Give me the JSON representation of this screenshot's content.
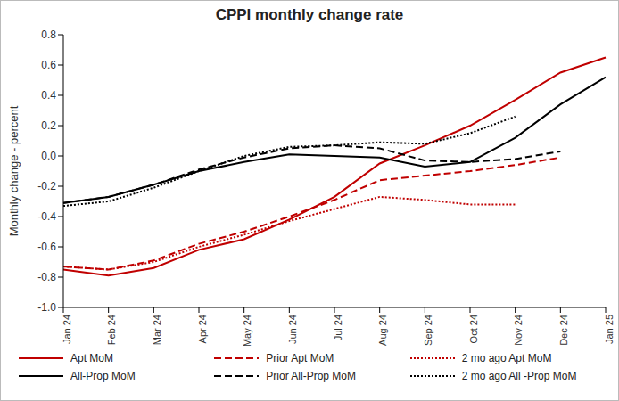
{
  "chart_data": {
    "type": "line",
    "title": "CPPI monthly change rate",
    "y_label": "Monthly change - percent",
    "categories": [
      "Jan 24",
      "Feb 24",
      "Mar 24",
      "Apr 24",
      "May 24",
      "Jun 24",
      "Jul 24",
      "Aug 24",
      "Sep 24",
      "Oct 24",
      "Nov 24",
      "Dec 24",
      "Jan 25"
    ],
    "ylim": [
      -1.0,
      0.8
    ],
    "yticks": [
      {
        "value": -1.0,
        "label": "-1.0"
      },
      -0.8,
      -0.6,
      -0.4,
      -0.2,
      {
        "value": 0,
        "label": "0.0"
      },
      0.2,
      0.4,
      0.6,
      0.8
    ],
    "grid": false,
    "legend": "bottom",
    "series": [
      {
        "name": "Apt MoM",
        "color": "#c00000",
        "line_style": "solid",
        "values": [
          -0.75,
          -0.79,
          -0.74,
          -0.62,
          -0.55,
          -0.42,
          -0.27,
          -0.05,
          0.07,
          0.2,
          0.37,
          0.55,
          0.65
        ]
      },
      {
        "name": "Prior Apt MoM",
        "color": "#c00000",
        "line_style": "dashed",
        "values": [
          -0.73,
          -0.75,
          -0.69,
          -0.58,
          -0.5,
          -0.4,
          -0.29,
          -0.16,
          -0.13,
          -0.1,
          -0.06,
          -0.01,
          null
        ]
      },
      {
        "name": "2 mo ago Apt MoM",
        "color": "#c00000",
        "line_style": "dotted",
        "values": [
          -0.73,
          -0.75,
          -0.7,
          -0.6,
          -0.52,
          -0.43,
          -0.35,
          -0.27,
          -0.29,
          -0.32,
          -0.32,
          null,
          null
        ]
      },
      {
        "name": "All-Prop MoM",
        "color": "#000000",
        "line_style": "solid",
        "values": [
          -0.31,
          -0.27,
          -0.19,
          -0.1,
          -0.04,
          0.01,
          0.0,
          -0.01,
          -0.07,
          -0.04,
          0.12,
          0.34,
          0.52
        ]
      },
      {
        "name": "Prior All-Prop MoM",
        "color": "#000000",
        "line_style": "dashed",
        "values": [
          -0.31,
          -0.27,
          -0.19,
          -0.09,
          -0.01,
          0.05,
          0.07,
          0.05,
          -0.03,
          -0.04,
          -0.02,
          0.03,
          null
        ]
      },
      {
        "name": "2 mo ago All -Prop MoM",
        "color": "#000000",
        "line_style": "dotted",
        "values": [
          -0.33,
          -0.3,
          -0.21,
          -0.1,
          0.0,
          0.06,
          0.07,
          0.09,
          0.08,
          0.15,
          0.26,
          null,
          null
        ]
      }
    ]
  }
}
